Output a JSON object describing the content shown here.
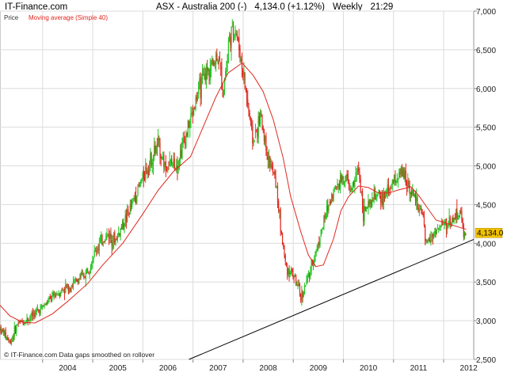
{
  "header": {
    "brand": "IT-Finance.com",
    "instrument": "ASX - Australia 200 (-)",
    "last_change": "4,134.0 (+1.12%)",
    "period": "Weekly",
    "time": "21:29"
  },
  "legend": {
    "price": "Price",
    "moving_average": "Moving average (Simple 40)"
  },
  "footer": "© IT-Finance.com  Data gaps smoothed on rollover",
  "colors": {
    "up": "#22c322",
    "down": "#e0281e",
    "moving_average": "#e0281e",
    "trendline": "#000000",
    "grid": "#dcdcdc",
    "last_label_bg": "#f2c200"
  },
  "chart_data": {
    "type": "candlestick",
    "title": "ASX - Australia 200 (-)",
    "xlabel": "",
    "ylabel": "",
    "x_ticks": [
      "2004",
      "2005",
      "2006",
      "2007",
      "2008",
      "2009",
      "2010",
      "2011",
      "2012"
    ],
    "y_ticks": [
      "2,500",
      "3,000",
      "3,500",
      "4,000",
      "4,500",
      "5,000",
      "5,500",
      "6,000",
      "6,500",
      "7,000"
    ],
    "xlim": [
      2003.15,
      2012.6
    ],
    "ylim": [
      2500,
      7000
    ],
    "grid": true,
    "last_value_label": "4,134.0",
    "price_path": [
      [
        2003.15,
        2900
      ],
      [
        2003.25,
        2820
      ],
      [
        2003.35,
        2720
      ],
      [
        2003.5,
        2960
      ],
      [
        2003.7,
        3020
      ],
      [
        2004.0,
        3180
      ],
      [
        2004.3,
        3360
      ],
      [
        2004.6,
        3470
      ],
      [
        2004.85,
        3600
      ],
      [
        2005.1,
        3960
      ],
      [
        2005.3,
        4120
      ],
      [
        2005.45,
        4040
      ],
      [
        2005.7,
        4370
      ],
      [
        2006.0,
        4860
      ],
      [
        2006.3,
        5280
      ],
      [
        2006.45,
        4990
      ],
      [
        2006.7,
        5060
      ],
      [
        2006.95,
        5600
      ],
      [
        2007.1,
        5950
      ],
      [
        2007.3,
        6240
      ],
      [
        2007.5,
        6440
      ],
      [
        2007.6,
        5950
      ],
      [
        2007.72,
        6650
      ],
      [
        2007.85,
        6780
      ],
      [
        2008.0,
        6200
      ],
      [
        2008.2,
        5300
      ],
      [
        2008.35,
        5650
      ],
      [
        2008.5,
        5100
      ],
      [
        2008.65,
        4800
      ],
      [
        2008.75,
        4200
      ],
      [
        2008.85,
        3700
      ],
      [
        2009.0,
        3600
      ],
      [
        2009.15,
        3300
      ],
      [
        2009.3,
        3550
      ],
      [
        2009.45,
        3900
      ],
      [
        2009.6,
        4250
      ],
      [
        2009.75,
        4600
      ],
      [
        2009.9,
        4800
      ],
      [
        2010.05,
        4870
      ],
      [
        2010.15,
        4650
      ],
      [
        2010.3,
        4980
      ],
      [
        2010.4,
        4400
      ],
      [
        2010.5,
        4450
      ],
      [
        2010.6,
        4600
      ],
      [
        2010.8,
        4580
      ],
      [
        2010.9,
        4700
      ],
      [
        2011.05,
        4850
      ],
      [
        2011.2,
        4900
      ],
      [
        2011.3,
        4760
      ],
      [
        2011.45,
        4550
      ],
      [
        2011.6,
        4300
      ],
      [
        2011.62,
        4000
      ],
      [
        2011.75,
        4100
      ],
      [
        2011.9,
        4200
      ],
      [
        2012.05,
        4250
      ],
      [
        2012.2,
        4320
      ],
      [
        2012.32,
        4420
      ],
      [
        2012.4,
        4150
      ],
      [
        2012.45,
        4134
      ]
    ],
    "moving_average": [
      [
        2003.15,
        3200
      ],
      [
        2003.35,
        3060
      ],
      [
        2003.6,
        2980
      ],
      [
        2003.85,
        2970
      ],
      [
        2004.2,
        3090
      ],
      [
        2004.5,
        3250
      ],
      [
        2004.9,
        3480
      ],
      [
        2005.2,
        3720
      ],
      [
        2005.6,
        4000
      ],
      [
        2006.0,
        4380
      ],
      [
        2006.3,
        4680
      ],
      [
        2006.6,
        4920
      ],
      [
        2006.95,
        5120
      ],
      [
        2007.2,
        5500
      ],
      [
        2007.45,
        5880
      ],
      [
        2007.7,
        6200
      ],
      [
        2007.98,
        6330
      ],
      [
        2008.2,
        6170
      ],
      [
        2008.4,
        5960
      ],
      [
        2008.6,
        5600
      ],
      [
        2008.8,
        5100
      ],
      [
        2008.95,
        4600
      ],
      [
        2009.15,
        4150
      ],
      [
        2009.3,
        3850
      ],
      [
        2009.45,
        3700
      ],
      [
        2009.6,
        3720
      ],
      [
        2009.8,
        4050
      ],
      [
        2009.95,
        4420
      ],
      [
        2010.1,
        4600
      ],
      [
        2010.3,
        4740
      ],
      [
        2010.5,
        4720
      ],
      [
        2010.7,
        4650
      ],
      [
        2010.9,
        4650
      ],
      [
        2011.1,
        4690
      ],
      [
        2011.35,
        4730
      ],
      [
        2011.5,
        4620
      ],
      [
        2011.65,
        4480
      ],
      [
        2011.85,
        4300
      ],
      [
        2012.1,
        4250
      ],
      [
        2012.3,
        4210
      ],
      [
        2012.45,
        4180
      ]
    ],
    "trendline": [
      [
        2006.92,
        2500
      ],
      [
        2012.6,
        4050
      ]
    ]
  }
}
